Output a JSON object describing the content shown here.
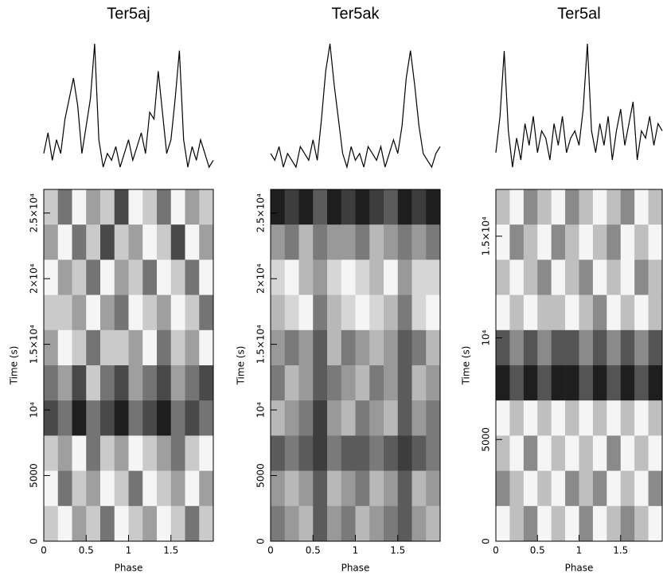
{
  "chart_data": [
    {
      "type": "line",
      "title": "Ter5aj",
      "values": [
        0.2,
        0.35,
        0.15,
        0.3,
        0.2,
        0.45,
        0.6,
        0.75,
        0.55,
        0.2,
        0.4,
        0.6,
        1.0,
        0.3,
        0.1,
        0.2,
        0.15,
        0.25,
        0.1,
        0.2,
        0.3,
        0.15,
        0.25,
        0.35,
        0.2,
        0.5,
        0.45,
        0.8,
        0.5,
        0.2,
        0.3,
        0.6,
        0.95,
        0.3,
        0.1,
        0.25,
        0.15,
        0.3,
        0.2,
        0.1,
        0.15
      ]
    },
    {
      "type": "heatmap",
      "xlabel": "Phase",
      "ylabel": "Time (s)",
      "xlim": [
        0,
        2
      ],
      "xticks": [
        0,
        0.5,
        1,
        1.5
      ],
      "ylim": [
        0,
        26800
      ],
      "yticks": [
        0,
        5000,
        {
          "value": 10000,
          "label": "10⁴"
        },
        {
          "value": 15000,
          "label": "1.5×10⁴"
        },
        {
          "value": 20000,
          "label": "2×10⁴"
        },
        {
          "value": 25000,
          "label": "2.5×10⁴"
        }
      ],
      "z": [
        [
          5,
          3,
          6,
          4,
          5,
          2,
          6,
          5,
          3,
          6,
          4,
          5
        ],
        [
          4,
          6,
          3,
          5,
          2,
          5,
          4,
          6,
          5,
          2,
          6,
          4
        ],
        [
          6,
          4,
          5,
          3,
          6,
          4,
          5,
          3,
          6,
          5,
          3,
          6
        ],
        [
          5,
          5,
          4,
          6,
          4,
          3,
          6,
          5,
          4,
          6,
          5,
          3
        ],
        [
          4,
          6,
          5,
          3,
          5,
          5,
          4,
          6,
          3,
          5,
          4,
          6
        ],
        [
          3,
          4,
          2,
          5,
          3,
          2,
          4,
          3,
          2,
          4,
          3,
          2
        ],
        [
          2,
          3,
          1,
          3,
          2,
          1,
          3,
          2,
          1,
          3,
          2,
          3
        ],
        [
          5,
          4,
          6,
          3,
          5,
          4,
          6,
          5,
          4,
          3,
          5,
          6
        ],
        [
          6,
          3,
          5,
          4,
          6,
          5,
          3,
          6,
          5,
          4,
          6,
          4
        ],
        [
          5,
          6,
          4,
          5,
          3,
          6,
          5,
          4,
          6,
          5,
          3,
          5
        ]
      ]
    },
    {
      "type": "line",
      "title": "Ter5ak",
      "values": [
        0.2,
        0.15,
        0.25,
        0.1,
        0.2,
        0.15,
        0.1,
        0.25,
        0.2,
        0.15,
        0.3,
        0.15,
        0.45,
        0.8,
        1.0,
        0.7,
        0.45,
        0.2,
        0.1,
        0.25,
        0.15,
        0.2,
        0.1,
        0.25,
        0.2,
        0.15,
        0.25,
        0.1,
        0.2,
        0.3,
        0.2,
        0.4,
        0.75,
        0.95,
        0.7,
        0.4,
        0.2,
        0.15,
        0.1,
        0.2,
        0.25
      ]
    },
    {
      "type": "heatmap",
      "xlabel": "Phase",
      "ylabel": "Time (s)",
      "xlim": [
        0,
        2
      ],
      "xticks": [
        0,
        0.5,
        1,
        1.5
      ],
      "ylim": [
        0,
        26800
      ],
      "yticks": [
        0,
        5000,
        {
          "value": 10000,
          "label": "10⁴"
        },
        {
          "value": 15000,
          "label": "1.5×10⁴"
        },
        {
          "value": 20000,
          "label": "2×10⁴"
        },
        {
          "value": 25000,
          "label": "2.5×10⁴"
        }
      ],
      "z": [
        [
          1,
          2,
          1,
          3,
          1,
          2,
          1,
          2,
          3,
          1,
          2,
          1
        ],
        [
          5,
          4,
          6,
          4,
          5,
          5,
          4,
          6,
          5,
          4,
          5,
          4
        ],
        [
          7,
          8,
          6,
          5,
          7,
          8,
          7,
          6,
          8,
          5,
          7,
          7
        ],
        [
          6,
          7,
          8,
          4,
          6,
          7,
          8,
          7,
          6,
          4,
          7,
          8
        ],
        [
          5,
          4,
          5,
          3,
          6,
          4,
          5,
          6,
          5,
          3,
          4,
          6
        ],
        [
          4,
          6,
          5,
          3,
          4,
          5,
          6,
          4,
          5,
          3,
          6,
          5
        ],
        [
          6,
          5,
          4,
          2,
          5,
          6,
          4,
          5,
          6,
          3,
          5,
          4
        ],
        [
          3,
          4,
          3,
          2,
          4,
          3,
          3,
          4,
          3,
          2,
          3,
          4
        ],
        [
          5,
          6,
          5,
          3,
          6,
          5,
          4,
          6,
          5,
          3,
          6,
          5
        ],
        [
          4,
          5,
          6,
          3,
          5,
          4,
          6,
          5,
          4,
          3,
          5,
          6
        ]
      ]
    },
    {
      "type": "line",
      "title": "Ter5al",
      "values": [
        0.25,
        0.5,
        0.95,
        0.4,
        0.15,
        0.35,
        0.2,
        0.45,
        0.3,
        0.5,
        0.25,
        0.4,
        0.35,
        0.2,
        0.45,
        0.3,
        0.5,
        0.25,
        0.35,
        0.4,
        0.3,
        0.55,
        1.0,
        0.4,
        0.25,
        0.45,
        0.3,
        0.5,
        0.2,
        0.4,
        0.55,
        0.3,
        0.45,
        0.6,
        0.2,
        0.4,
        0.35,
        0.5,
        0.3,
        0.45,
        0.4
      ]
    },
    {
      "type": "heatmap",
      "xlabel": "Phase",
      "ylabel": "Time (s)",
      "xlim": [
        0,
        2
      ],
      "xticks": [
        0,
        0.5,
        1,
        1.5
      ],
      "ylim": [
        0,
        17300
      ],
      "yticks": [
        0,
        5000,
        {
          "value": 10000,
          "label": "10⁴"
        },
        {
          "value": 15000,
          "label": "1.5×10⁴"
        }
      ],
      "z": [
        [
          5,
          6,
          4,
          5,
          6,
          4,
          5,
          6,
          5,
          4,
          6,
          5
        ],
        [
          6,
          4,
          5,
          6,
          4,
          5,
          6,
          5,
          4,
          6,
          5,
          6
        ],
        [
          5,
          6,
          5,
          4,
          6,
          5,
          4,
          6,
          5,
          6,
          4,
          5
        ],
        [
          6,
          5,
          6,
          5,
          5,
          6,
          5,
          4,
          6,
          5,
          6,
          5
        ],
        [
          3,
          4,
          3,
          4,
          3,
          3,
          4,
          3,
          4,
          3,
          4,
          3
        ],
        [
          2,
          3,
          2,
          3,
          2,
          2,
          3,
          2,
          3,
          2,
          3,
          2
        ],
        [
          6,
          5,
          6,
          5,
          6,
          5,
          6,
          5,
          6,
          5,
          6,
          5
        ],
        [
          5,
          6,
          4,
          6,
          5,
          6,
          5,
          6,
          4,
          6,
          5,
          6
        ],
        [
          4,
          5,
          6,
          5,
          6,
          4,
          5,
          4,
          6,
          5,
          6,
          4
        ],
        [
          6,
          5,
          4,
          6,
          5,
          6,
          4,
          6,
          5,
          4,
          5,
          6
        ]
      ]
    }
  ]
}
